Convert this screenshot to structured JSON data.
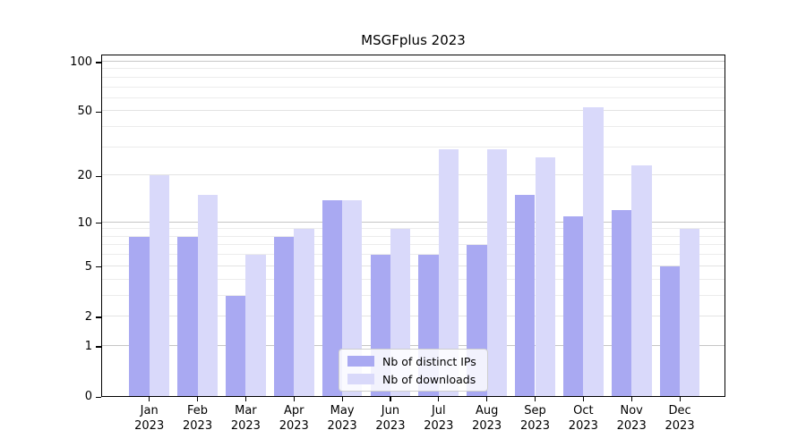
{
  "title": "MSGFplus 2023",
  "chart_data": {
    "type": "bar",
    "title": "MSGFplus 2023",
    "categories": [
      "Jan 2023",
      "Feb 2023",
      "Mar 2023",
      "Apr 2023",
      "May 2023",
      "Jun 2023",
      "Jul 2023",
      "Aug 2023",
      "Sep 2023",
      "Oct 2023",
      "Nov 2023",
      "Dec 2023"
    ],
    "x_tick_line1": [
      "Jan",
      "Feb",
      "Mar",
      "Apr",
      "May",
      "Jun",
      "Jul",
      "Aug",
      "Sep",
      "Oct",
      "Nov",
      "Dec"
    ],
    "x_tick_line2": [
      "2023",
      "2023",
      "2023",
      "2023",
      "2023",
      "2023",
      "2023",
      "2023",
      "2023",
      "2023",
      "2023",
      "2023"
    ],
    "series": [
      {
        "name": "Nb of distinct IPs",
        "color": "#a9a9f2",
        "values": [
          8,
          8,
          3,
          8,
          14,
          6,
          6,
          7,
          15,
          11,
          12,
          5
        ]
      },
      {
        "name": "Nb of downloads",
        "color": "#d9d9fa",
        "values": [
          20,
          15,
          6,
          9,
          14,
          9,
          29,
          29,
          26,
          53,
          23,
          9
        ]
      }
    ],
    "y_axis": {
      "scale": "log10(1+value)",
      "labeled_ticks": [
        0,
        1,
        2,
        5,
        10,
        20,
        50,
        100
      ],
      "decade_ticks": [
        1,
        10,
        100
      ],
      "minor_ticks": [
        3,
        4,
        6,
        7,
        8,
        9,
        30,
        40,
        60,
        70,
        80,
        90
      ],
      "ylim": [
        0,
        112
      ]
    },
    "legend": {
      "position": "lower-center",
      "entries": [
        "Nb of distinct IPs",
        "Nb of downloads"
      ]
    },
    "grid": true
  }
}
